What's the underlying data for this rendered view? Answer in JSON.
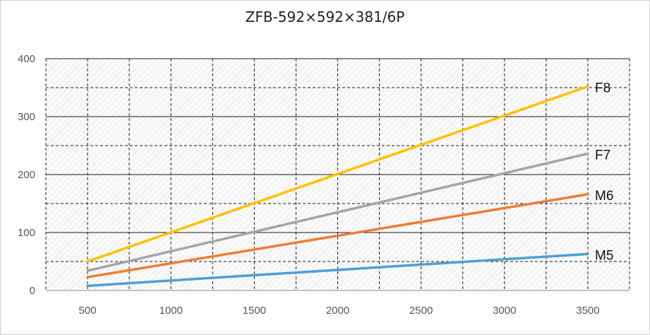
{
  "chart_data": {
    "type": "line",
    "title": "ZFB-592×592×381/6P",
    "xlabel": "",
    "ylabel": "",
    "x": [
      500,
      3500
    ],
    "xticks": [
      "500",
      "1000",
      "1500",
      "2000",
      "2500",
      "3000",
      "3500"
    ],
    "yticks": [
      "0",
      "100",
      "200",
      "300",
      "400"
    ],
    "xlim": [
      250,
      3750
    ],
    "ylim": [
      0,
      400
    ],
    "grid": true,
    "legend": "inline-end-labels",
    "series": [
      {
        "name": "F8",
        "color": "#FFC000",
        "values": [
          50,
          352
        ]
      },
      {
        "name": "F7",
        "color": "#A5A5A5",
        "values": [
          34,
          236
        ]
      },
      {
        "name": "M6",
        "color": "#ED7D31",
        "values": [
          23,
          166
        ]
      },
      {
        "name": "M5",
        "color": "#4D9FD8",
        "values": [
          8,
          63
        ]
      }
    ]
  }
}
